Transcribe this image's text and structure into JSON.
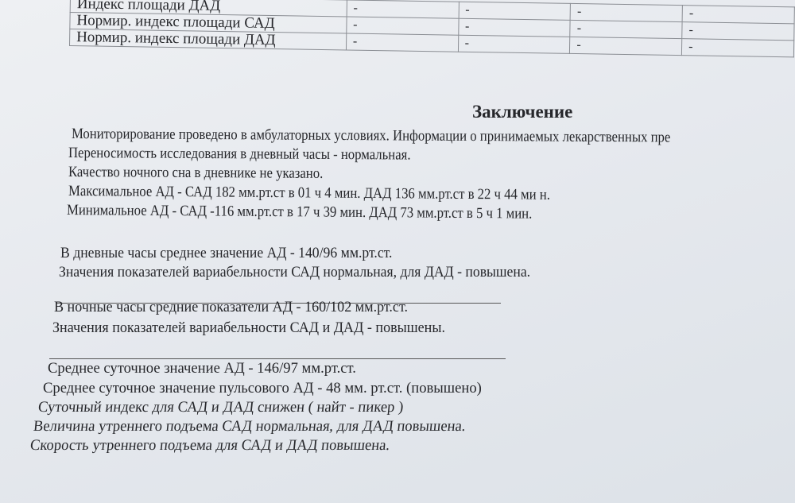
{
  "table": {
    "rows": [
      {
        "label": "Индекс площади ДАД",
        "values": [
          "-",
          "-",
          "-",
          "-"
        ]
      },
      {
        "label": "Нормир. индекс площади САД",
        "values": [
          "-",
          "-",
          "-",
          "-"
        ]
      },
      {
        "label": "Нормир. индекс площади ДАД",
        "values": [
          "-",
          "-",
          "-",
          "-"
        ]
      }
    ]
  },
  "conclusion": {
    "title": "Заключение",
    "lines": [
      "Мониторирование проведено в амбулаторных условиях. Информации о принимаемых лекарственных пре",
      "Переносимость исследования в дневный часы - нормальная.",
      "Качество ночного сна в дневнике не указано.",
      "Максимальное АД - САД 182 мм.рт.ст в 01 ч 4 мин. ДАД 136 мм.рт.ст в 22 ч 44 ми н.",
      "Минимальное АД - САД -116 мм.рт.ст в 17 ч 39 мин. ДАД 73 мм.рт.ст в 5 ч 1 мин.",
      "В дневные часы среднее значение АД - 140/96 мм.рт.ст.",
      "Значения показателей вариабельности САД нормальная, для  ДАД - повышена.",
      "В ночные часы средние показатели АД - 160/102 мм.рт.ст.",
      "Значения показателей вариабельности САД и ДАД - повышены.",
      "Среднее суточное значение АД - 146/97 мм.рт.ст.",
      "Среднее суточное значение пульсового АД -  48 мм.  рт.ст. (повышено)",
      "Суточный индекс для САД и ДАД  снижен ( найт - пикер )",
      "Величина утреннего подъема САД нормальная, для ДАД повышена.",
      "Скорость утреннего подъема для САД и ДАД повышена."
    ]
  }
}
